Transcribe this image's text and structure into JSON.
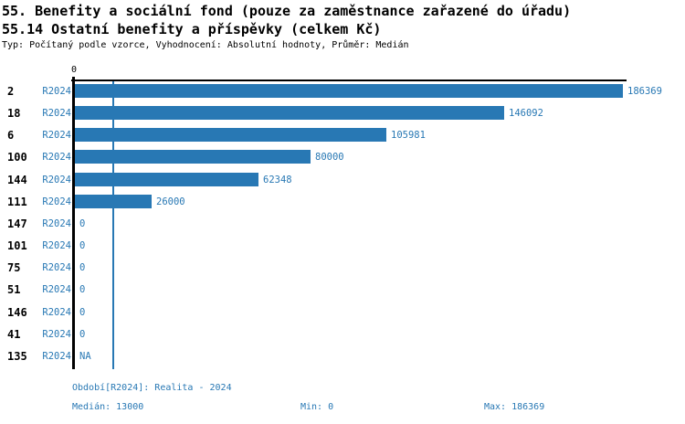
{
  "header": {
    "title_line1": "55. Benefity a sociální fond (pouze za zaměstnance zařazené do úřadu)",
    "title_line2": "55.14 Ostatní benefity a příspěvky (celkem Kč)",
    "subtitle": "Typ: Počítaný podle vzorce, Vyhodnocení: Absolutní hodnoty, Průměr: Medián"
  },
  "chart_data": {
    "type": "bar",
    "orientation": "horizontal",
    "title": "55.14 Ostatní benefity a příspěvky (celkem Kč)",
    "series_label": "R2024",
    "axis_zero_label": "0",
    "categories": [
      "2",
      "18",
      "6",
      "100",
      "144",
      "111",
      "147",
      "101",
      "75",
      "51",
      "146",
      "41",
      "135"
    ],
    "values": [
      186369,
      146092,
      105981,
      80000,
      62348,
      26000,
      0,
      0,
      0,
      0,
      0,
      0,
      null
    ],
    "value_labels": [
      "186369",
      "146092",
      "105981",
      "80000",
      "62348",
      "26000",
      "0",
      "0",
      "0",
      "0",
      "0",
      "0",
      "NA"
    ],
    "xlim": [
      0,
      186369
    ],
    "median_value": 13000,
    "grid": "single vertical median line",
    "legend_position": "none",
    "bar_color": "#2878b4",
    "axis_color": "#000000",
    "label_color": "#2878b4"
  },
  "footer": {
    "period": "Období[R2024]: Realita - 2024",
    "median": "Medián: 13000",
    "min": "Min: 0",
    "max": "Max: 186369"
  }
}
